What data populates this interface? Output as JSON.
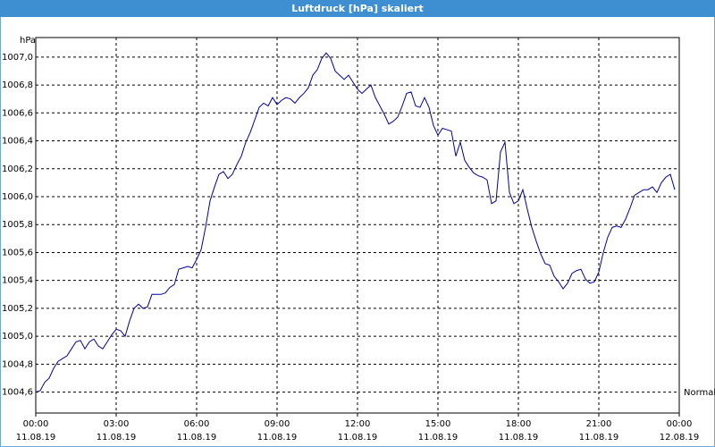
{
  "chart_data": {
    "type": "line",
    "title": "Luftdruck [hPa] skaliert",
    "y_unit": "hPa",
    "x": [
      0,
      0.167,
      0.333,
      0.5,
      0.667,
      0.833,
      1,
      1.167,
      1.333,
      1.5,
      1.667,
      1.833,
      2,
      2.167,
      2.333,
      2.5,
      2.667,
      2.833,
      3,
      3.167,
      3.333,
      3.5,
      3.667,
      3.833,
      4,
      4.167,
      4.333,
      4.5,
      4.667,
      4.833,
      5,
      5.167,
      5.333,
      5.5,
      5.667,
      5.833,
      6,
      6.167,
      6.333,
      6.5,
      6.667,
      6.833,
      7,
      7.167,
      7.333,
      7.5,
      7.667,
      7.833,
      8,
      8.167,
      8.333,
      8.5,
      8.667,
      8.833,
      9,
      9.167,
      9.333,
      9.5,
      9.667,
      9.833,
      10,
      10.167,
      10.333,
      10.5,
      10.667,
      10.833,
      11,
      11.167,
      11.333,
      11.5,
      11.667,
      11.833,
      12,
      12.167,
      12.333,
      12.5,
      12.667,
      12.833,
      13,
      13.167,
      13.333,
      13.5,
      13.667,
      13.833,
      14,
      14.167,
      14.333,
      14.5,
      14.667,
      14.833,
      15,
      15.167,
      15.333,
      15.5,
      15.667,
      15.833,
      16,
      16.167,
      16.333,
      16.5,
      16.667,
      16.833,
      17,
      17.167,
      17.333,
      17.5,
      17.667,
      17.833,
      18,
      18.167,
      18.333,
      18.5,
      18.667,
      18.833,
      19,
      19.167,
      19.333,
      19.5,
      19.667,
      19.833,
      20,
      20.167,
      20.333,
      20.5,
      20.667,
      20.833,
      21,
      21.167,
      21.333,
      21.5,
      21.667,
      21.833,
      22,
      22.167,
      22.333,
      22.5,
      22.667,
      22.833,
      23,
      23.167,
      23.333,
      23.5,
      23.667,
      23.833
    ],
    "series": [
      {
        "name": "Normal",
        "color": "#0000a0",
        "values": [
          1004.6,
          1004.61,
          1004.67,
          1004.7,
          1004.77,
          1004.82,
          1004.84,
          1004.86,
          1004.91,
          1004.96,
          1004.97,
          1004.91,
          1004.96,
          1004.98,
          1004.93,
          1004.91,
          1004.96,
          1005.01,
          1005.05,
          1005.04,
          1005.0,
          1005.11,
          1005.2,
          1005.23,
          1005.2,
          1005.21,
          1005.3,
          1005.3,
          1005.3,
          1005.31,
          1005.35,
          1005.37,
          1005.48,
          1005.49,
          1005.5,
          1005.49,
          1005.55,
          1005.62,
          1005.78,
          1005.97,
          1006.07,
          1006.16,
          1006.18,
          1006.13,
          1006.16,
          1006.23,
          1006.29,
          1006.39,
          1006.46,
          1006.55,
          1006.64,
          1006.67,
          1006.65,
          1006.71,
          1006.66,
          1006.69,
          1006.71,
          1006.7,
          1006.67,
          1006.71,
          1006.74,
          1006.78,
          1006.87,
          1006.91,
          1006.99,
          1007.03,
          1006.99,
          1006.9,
          1006.87,
          1006.84,
          1006.87,
          1006.82,
          1006.77,
          1006.74,
          1006.77,
          1006.8,
          1006.71,
          1006.65,
          1006.59,
          1006.52,
          1006.54,
          1006.57,
          1006.65,
          1006.74,
          1006.75,
          1006.65,
          1006.64,
          1006.71,
          1006.64,
          1006.51,
          1006.44,
          1006.49,
          1006.48,
          1006.47,
          1006.29,
          1006.39,
          1006.26,
          1006.21,
          1006.17,
          1006.15,
          1006.14,
          1006.12,
          1005.95,
          1005.97,
          1006.32,
          1006.39,
          1006.03,
          1005.95,
          1005.97,
          1006.05,
          1005.91,
          1005.78,
          1005.68,
          1005.59,
          1005.52,
          1005.51,
          1005.43,
          1005.39,
          1005.34,
          1005.38,
          1005.45,
          1005.47,
          1005.48,
          1005.41,
          1005.38,
          1005.39,
          1005.46,
          1005.6,
          1005.71,
          1005.78,
          1005.79,
          1005.78,
          1005.84,
          1005.92,
          1006.01,
          1006.03,
          1006.05,
          1006.05,
          1006.07,
          1006.03,
          1006.1,
          1006.14,
          1006.16,
          1006.05
        ]
      }
    ],
    "xlim": [
      0,
      24
    ],
    "xticks": [
      {
        "value": 0,
        "label": "00:00"
      },
      {
        "value": 3,
        "label": "03:00"
      },
      {
        "value": 6,
        "label": "06:00"
      },
      {
        "value": 9,
        "label": "09:00"
      },
      {
        "value": 12,
        "label": "12:00"
      },
      {
        "value": 15,
        "label": "15:00"
      },
      {
        "value": 18,
        "label": "18:00"
      },
      {
        "value": 21,
        "label": "21:00"
      },
      {
        "value": 24,
        "label": "00:00"
      }
    ],
    "xtick_dates": [
      "11.08.19",
      "11.08.19",
      "11.08.19",
      "11.08.19",
      "11.08.19",
      "11.08.19",
      "11.08.19",
      "11.08.19",
      "12.08.19"
    ],
    "ylim": [
      1004.45,
      1007.14
    ],
    "yticks": [
      {
        "value": 1004.6,
        "label": "1004,6"
      },
      {
        "value": 1004.8,
        "label": "1004,8"
      },
      {
        "value": 1005.0,
        "label": "1005,0"
      },
      {
        "value": 1005.2,
        "label": "1005,2"
      },
      {
        "value": 1005.4,
        "label": "1005,4"
      },
      {
        "value": 1005.6,
        "label": "1005,6"
      },
      {
        "value": 1005.8,
        "label": "1005,8"
      },
      {
        "value": 1006.0,
        "label": "1006,0"
      },
      {
        "value": 1006.2,
        "label": "1006,2"
      },
      {
        "value": 1006.4,
        "label": "1006,4"
      },
      {
        "value": 1006.6,
        "label": "1006,6"
      },
      {
        "value": 1006.8,
        "label": "1006,8"
      },
      {
        "value": 1007.0,
        "label": "1007,0"
      }
    ],
    "grid": true
  }
}
